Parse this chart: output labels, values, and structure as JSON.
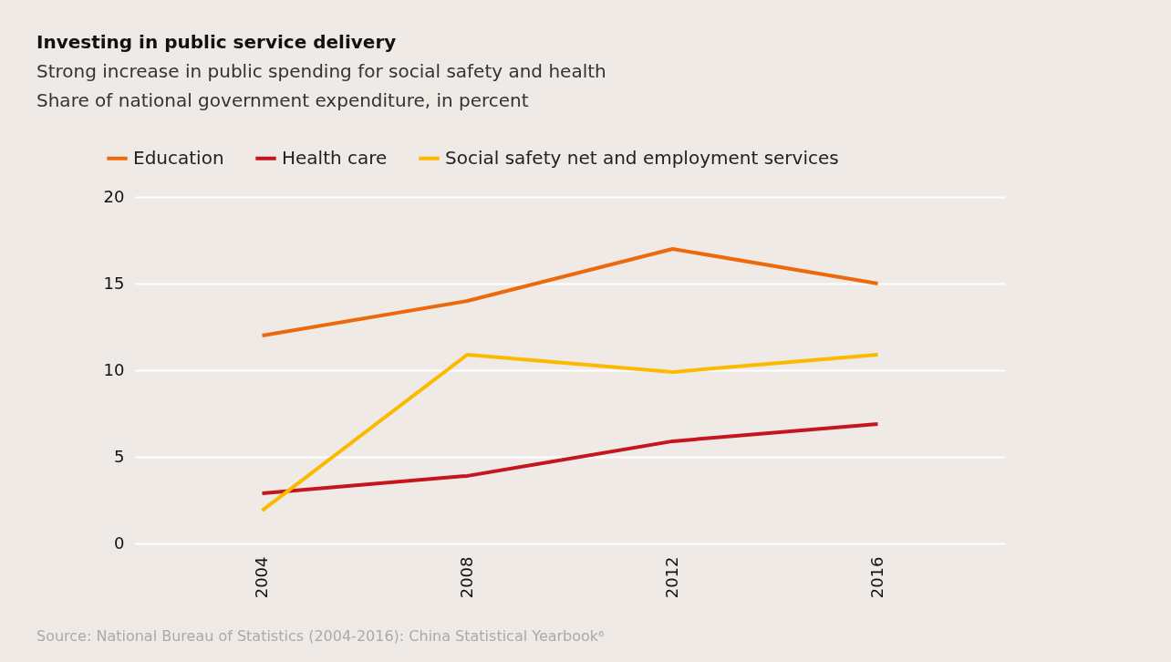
{
  "chart_data": {
    "type": "line",
    "title": "Investing in public service delivery",
    "subtitle": "Strong increase in public spending for social safety and health",
    "ylabel": "Share of national government expenditure, in percent",
    "categories": [
      "2004",
      "2008",
      "2012",
      "2016"
    ],
    "series": [
      {
        "name": "Education",
        "color": "#ec6a0c",
        "values": [
          12,
          14,
          17,
          15
        ]
      },
      {
        "name": "Health care",
        "color": "#c4161c",
        "values": [
          2.9,
          3.9,
          5.9,
          6.9
        ]
      },
      {
        "name": "Social safety net and employment services",
        "color": "#fbb900",
        "values": [
          1.9,
          10.9,
          9.9,
          10.9
        ]
      }
    ],
    "ylim": [
      0,
      20
    ],
    "yticks": [
      0,
      5,
      10,
      15,
      20
    ],
    "grid": "y",
    "legend": "top left",
    "marker": "none",
    "line_style": "solid",
    "annotations": [
      "Source: National Bureau of Statistics (2004-2016): China Statistical Yearbook⁶"
    ]
  }
}
